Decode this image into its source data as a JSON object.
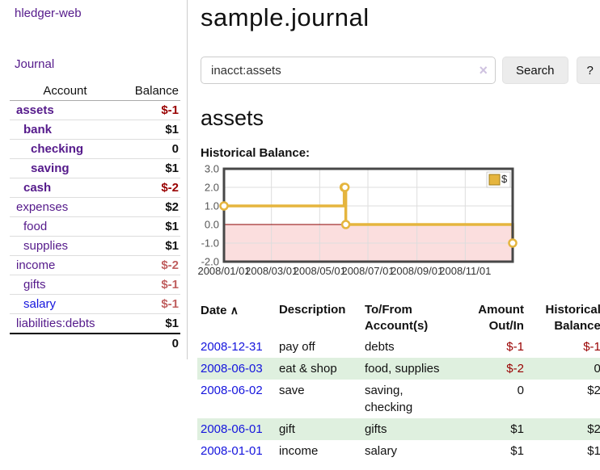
{
  "app": {
    "title": "hledger-web"
  },
  "palette": {
    "purple": "#551a8b",
    "blue": "#1414dd",
    "neg_strong": "#990000",
    "neg_soft": "#c05f5f",
    "gold": "#e5b53e",
    "gold_border": "#9e7c1c",
    "stripe_green": "#dff0df",
    "chart_negative_bg": "#fbdede",
    "zero_line": "#8b0000",
    "chart_border": "#474747",
    "grid": "#dddddd",
    "clear_icon": "#cfc2e0"
  },
  "sidebar": {
    "journal_link": "Journal",
    "accounts": {
      "account_header": "Account",
      "balance_header": "Balance",
      "rows": [
        {
          "name": "assets",
          "balance": "$-1",
          "indent": 1,
          "emphasis": "bold",
          "link_tone": "visited",
          "balance_tone": "neg"
        },
        {
          "name": "bank",
          "balance": "$1",
          "indent": 2,
          "emphasis": "bold",
          "link_tone": "visited",
          "balance_tone": "normal"
        },
        {
          "name": "checking",
          "balance": "0",
          "indent": 3,
          "emphasis": "bold",
          "link_tone": "visited",
          "balance_tone": "normal"
        },
        {
          "name": "saving",
          "balance": "$1",
          "indent": 3,
          "emphasis": "bold",
          "link_tone": "visited",
          "balance_tone": "normal"
        },
        {
          "name": "cash",
          "balance": "$-2",
          "indent": 2,
          "emphasis": "bold",
          "link_tone": "visited",
          "balance_tone": "neg"
        },
        {
          "name": "expenses",
          "balance": "$2",
          "indent": 1,
          "emphasis": "normal",
          "link_tone": "visited",
          "balance_tone": "normal"
        },
        {
          "name": "food",
          "balance": "$1",
          "indent": 2,
          "emphasis": "normal",
          "link_tone": "visited",
          "balance_tone": "normal"
        },
        {
          "name": "supplies",
          "balance": "$1",
          "indent": 2,
          "emphasis": "normal",
          "link_tone": "visited",
          "balance_tone": "normal"
        },
        {
          "name": "income",
          "balance": "$-2",
          "indent": 1,
          "emphasis": "normal",
          "link_tone": "visited",
          "balance_tone": "negsoft"
        },
        {
          "name": "gifts",
          "balance": "$-1",
          "indent": 2,
          "emphasis": "normal",
          "link_tone": "visited",
          "balance_tone": "negsoft"
        },
        {
          "name": "salary",
          "balance": "$-1",
          "indent": 2,
          "emphasis": "normal",
          "link_tone": "unvisited",
          "balance_tone": "negsoft"
        },
        {
          "name": "liabilities:debts",
          "balance": "$1",
          "indent": 1,
          "emphasis": "normal",
          "link_tone": "visited",
          "balance_tone": "normal"
        }
      ],
      "total": "0"
    }
  },
  "main": {
    "title": "sample.journal",
    "search": {
      "value": "inacct:assets",
      "clear_icon": "×",
      "button_label": "Search",
      "help_label": "?"
    },
    "account_heading": "assets",
    "chart_title": "Historical Balance:",
    "register": {
      "columns": [
        "Date",
        "Description",
        "To/From Account(s)",
        "Amount Out/In",
        "Historical Balance"
      ],
      "sort_icon": "∧",
      "rows": [
        {
          "date": "2008-12-31",
          "description": "pay off",
          "accounts": "debts",
          "amount": "$-1",
          "balance": "$-1",
          "amount_tone": "neg",
          "balance_tone": "neg"
        },
        {
          "date": "2008-06-03",
          "description": "eat & shop",
          "accounts": "food, supplies",
          "amount": "$-2",
          "balance": "0",
          "amount_tone": "neg",
          "balance_tone": "normal"
        },
        {
          "date": "2008-06-02",
          "description": "save",
          "accounts": "saving, checking",
          "amount": "0",
          "balance": "$2",
          "amount_tone": "normal",
          "balance_tone": "normal"
        },
        {
          "date": "2008-06-01",
          "description": "gift",
          "accounts": "gifts",
          "amount": "$1",
          "balance": "$2",
          "amount_tone": "normal",
          "balance_tone": "normal"
        },
        {
          "date": "2008-01-01",
          "description": "income",
          "accounts": "salary",
          "amount": "$1",
          "balance": "$1",
          "amount_tone": "normal",
          "balance_tone": "normal"
        }
      ]
    }
  },
  "chart_data": {
    "type": "line",
    "title": "Historical Balance:",
    "step": true,
    "x_range": [
      "2008-01-01",
      "2008-12-31"
    ],
    "ylim": [
      -2,
      3
    ],
    "yticks": [
      3.0,
      2.0,
      1.0,
      0.0,
      -1.0,
      -2.0
    ],
    "xticks": [
      "2008/01/01",
      "2008/03/01",
      "2008/05/01",
      "2008/07/01",
      "2008/09/01",
      "2008/11/01"
    ],
    "grid": true,
    "legend": {
      "position": "top-right"
    },
    "series": [
      {
        "name": "$",
        "points": [
          [
            "2008-01-01",
            1
          ],
          [
            "2008-06-01",
            2
          ],
          [
            "2008-06-02",
            2
          ],
          [
            "2008-06-03",
            0
          ],
          [
            "2008-12-31",
            -1
          ]
        ]
      }
    ]
  }
}
